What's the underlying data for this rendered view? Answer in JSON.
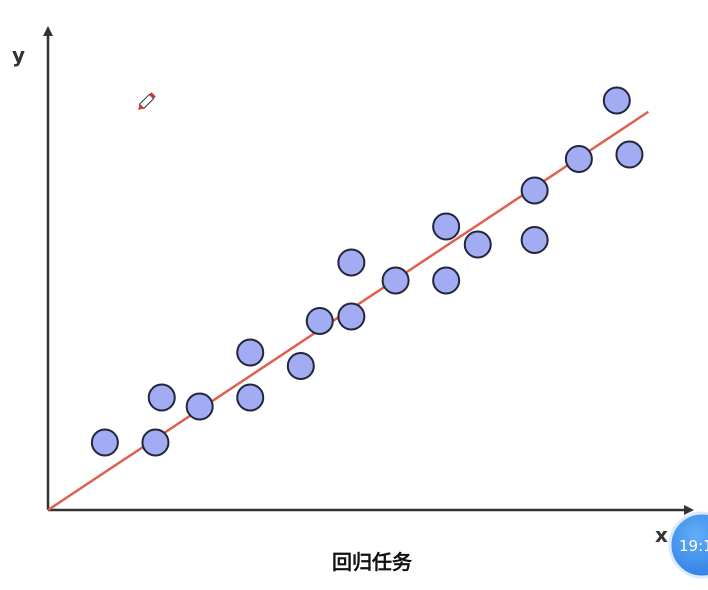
{
  "chart_data": {
    "type": "scatter",
    "title": "回归任务",
    "xlabel": "x",
    "ylabel": "y",
    "xlim": [
      0,
      100
    ],
    "ylim": [
      0,
      100
    ],
    "grid": false,
    "series": [
      {
        "kind": "points",
        "x": [
          9,
          17,
          18,
          24,
          32,
          32,
          40,
          43,
          48,
          48,
          55,
          63,
          63,
          68,
          77,
          77,
          84,
          90,
          92
        ],
        "y": [
          15,
          15,
          25,
          23,
          25,
          35,
          32,
          42,
          43,
          55,
          51,
          51,
          63,
          59,
          60,
          71,
          78,
          91,
          79
        ],
        "color": "#a1acf2"
      },
      {
        "kind": "fit-line",
        "x": [
          0,
          95
        ],
        "y": [
          0,
          88.5
        ],
        "color": "#e06050"
      }
    ]
  },
  "overlay": {
    "clock_text": "19:1",
    "cursor_icon": "pen-cursor-icon",
    "accent": "#3b8ff0"
  }
}
